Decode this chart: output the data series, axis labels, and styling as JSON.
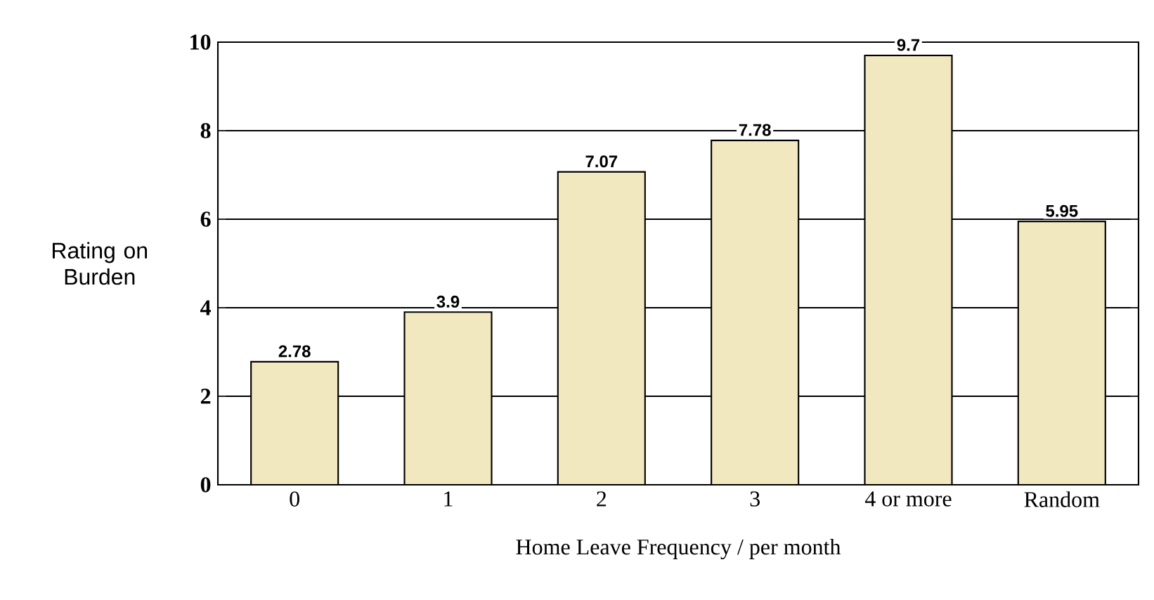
{
  "chart_data": {
    "type": "bar",
    "xlabel": "Home Leave Frequency  / per month",
    "ylabel": "Rating on Burden",
    "categories": [
      "0",
      "1",
      "2",
      "3",
      "4 or more",
      "Random"
    ],
    "values": [
      2.78,
      3.9,
      7.07,
      7.78,
      9.7,
      5.95
    ],
    "color": "#f2e8c0",
    "ylim": [
      0,
      10
    ],
    "yticks": [
      0,
      2,
      4,
      6,
      8,
      10
    ],
    "grid": "y",
    "data_labels": true
  }
}
